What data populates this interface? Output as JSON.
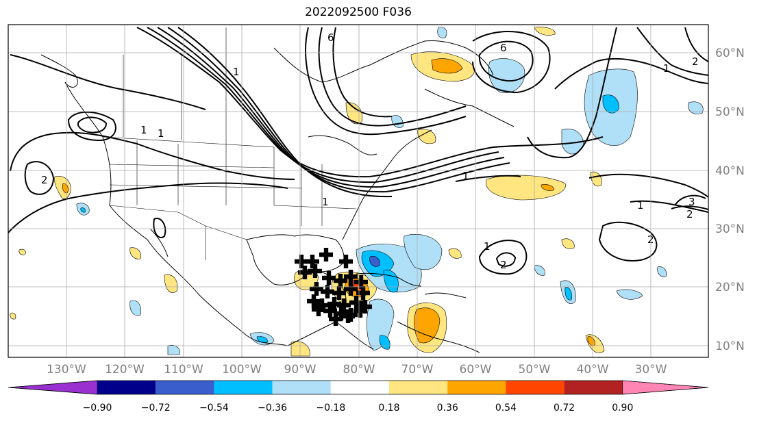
{
  "title": "2022092500 F036",
  "map": {
    "lon_labels": [
      "130°W",
      "120°W",
      "110°W",
      "100°W",
      "90°W",
      "80°W",
      "70°W",
      "60°W",
      "50°W",
      "40°W",
      "30°W"
    ],
    "lat_labels": [
      "60°N",
      "50°N",
      "40°N",
      "30°N",
      "20°N",
      "10°N"
    ],
    "contour_labels": [
      "6",
      "1",
      "1",
      "1",
      "1",
      "1",
      "2",
      "2",
      "1",
      "6",
      "1",
      "2",
      "1",
      "2",
      "3",
      "2"
    ]
  },
  "colorbar": {
    "ticks": [
      "−0.90",
      "−0.72",
      "−0.54",
      "−0.36",
      "−0.18",
      "0.18",
      "0.36",
      "0.54",
      "0.72",
      "0.90"
    ],
    "colors": [
      "#9b30d0",
      "#00008b",
      "#3a5fcd",
      "#00bfff",
      "#b0e0f8",
      "#ffffff",
      "#ffe680",
      "#ffa500",
      "#ff4500",
      "#b22222",
      "#ff86b4"
    ]
  }
}
